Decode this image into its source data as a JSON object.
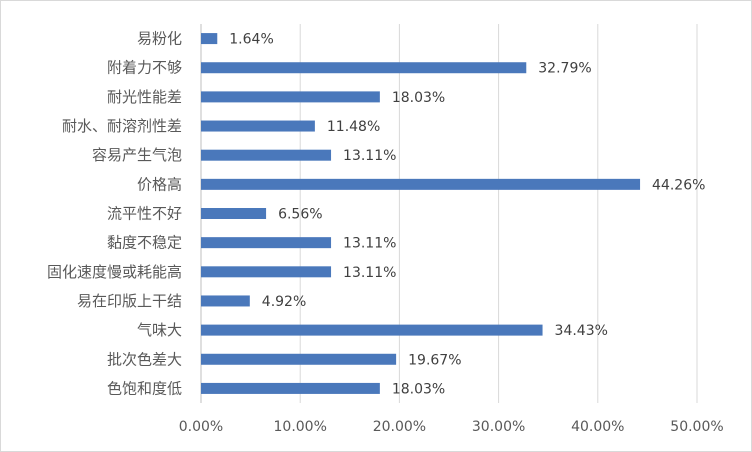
{
  "chart_data": {
    "type": "bar",
    "orientation": "horizontal",
    "categories": [
      "易粉化",
      "附着力不够",
      "耐光性能差",
      "耐水、耐溶剂性差",
      "容易产生气泡",
      "价格高",
      "流平性不好",
      "黏度不稳定",
      "固化速度慢或耗能高",
      "易在印版上干结",
      "气味大",
      "批次色差大",
      "色饱和度低"
    ],
    "values": [
      1.64,
      32.79,
      18.03,
      11.48,
      13.11,
      44.26,
      6.56,
      13.11,
      13.11,
      4.92,
      34.43,
      19.67,
      18.03
    ],
    "data_labels": [
      "1.64%",
      "32.79%",
      "18.03%",
      "11.48%",
      "13.11%",
      "44.26%",
      "6.56%",
      "13.11%",
      "13.11%",
      "4.92%",
      "34.43%",
      "19.67%",
      "18.03%"
    ],
    "x_ticks": [
      "0.00%",
      "10.00%",
      "20.00%",
      "30.00%",
      "40.00%",
      "50.00%"
    ],
    "xlim": [
      0,
      50
    ],
    "xlabel": "",
    "ylabel": "",
    "grid": true,
    "legend": "none",
    "bar_color": "#4a78bb",
    "grid_color": "#d9d9d9"
  }
}
